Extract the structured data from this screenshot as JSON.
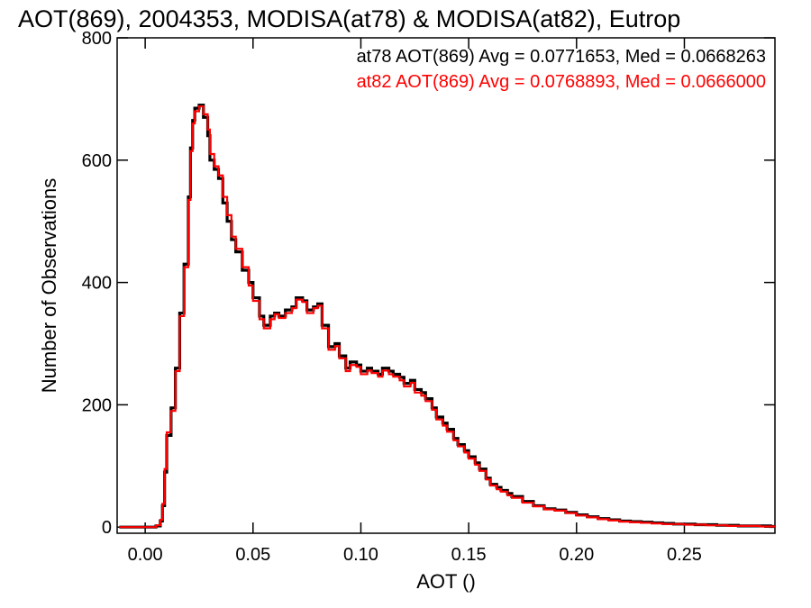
{
  "chart_data": {
    "type": "line",
    "title": "AOT(869), 2004353, MODISA(at78) & MODISA(at82), Eutrop",
    "xlabel": "AOT ()",
    "ylabel": "Number of Observations",
    "xlim": [
      -0.013,
      0.292
    ],
    "ylim": [
      -10,
      800
    ],
    "x_ticks": [
      0.0,
      0.05,
      0.1,
      0.15,
      0.2,
      0.25
    ],
    "x_tick_labels": [
      "0.00",
      "0.05",
      "0.10",
      "0.15",
      "0.20",
      "0.25"
    ],
    "y_ticks": [
      0,
      200,
      400,
      600,
      800
    ],
    "y_tick_labels": [
      "0",
      "200",
      "400",
      "600",
      "800"
    ],
    "grid": false,
    "histogram_step": true,
    "series": [
      {
        "name": "at78",
        "color": "#000000",
        "annotation": "at78 AOT(869) Avg = 0.0771653, Med = 0.0668263",
        "x": [
          -0.012,
          0.0,
          0.005,
          0.007,
          0.008,
          0.009,
          0.01,
          0.012,
          0.014,
          0.016,
          0.018,
          0.02,
          0.021,
          0.022,
          0.023,
          0.025,
          0.027,
          0.029,
          0.03,
          0.032,
          0.034,
          0.036,
          0.038,
          0.04,
          0.042,
          0.045,
          0.048,
          0.05,
          0.053,
          0.055,
          0.058,
          0.06,
          0.062,
          0.065,
          0.068,
          0.07,
          0.073,
          0.075,
          0.078,
          0.08,
          0.082,
          0.085,
          0.088,
          0.09,
          0.093,
          0.095,
          0.098,
          0.1,
          0.103,
          0.105,
          0.108,
          0.11,
          0.113,
          0.115,
          0.118,
          0.12,
          0.123,
          0.125,
          0.128,
          0.13,
          0.133,
          0.135,
          0.138,
          0.14,
          0.143,
          0.145,
          0.148,
          0.15,
          0.153,
          0.155,
          0.158,
          0.16,
          0.163,
          0.165,
          0.168,
          0.17,
          0.175,
          0.18,
          0.185,
          0.19,
          0.195,
          0.2,
          0.205,
          0.21,
          0.215,
          0.22,
          0.225,
          0.23,
          0.235,
          0.24,
          0.245,
          0.25,
          0.255,
          0.26,
          0.265,
          0.27,
          0.275,
          0.28,
          0.285,
          0.29
        ],
        "y": [
          0,
          0,
          2,
          10,
          35,
          90,
          150,
          195,
          260,
          350,
          430,
          540,
          620,
          665,
          685,
          690,
          670,
          640,
          600,
          585,
          570,
          530,
          500,
          470,
          450,
          420,
          400,
          375,
          345,
          330,
          345,
          350,
          345,
          355,
          360,
          375,
          370,
          355,
          360,
          365,
          330,
          295,
          300,
          280,
          260,
          270,
          265,
          255,
          260,
          255,
          250,
          260,
          255,
          250,
          245,
          235,
          240,
          225,
          220,
          210,
          195,
          180,
          170,
          160,
          145,
          135,
          125,
          115,
          105,
          95,
          80,
          70,
          65,
          60,
          55,
          50,
          42,
          35,
          30,
          28,
          24,
          20,
          17,
          14,
          12,
          10,
          9,
          8,
          7,
          6,
          5,
          5,
          4,
          4,
          3,
          3,
          2,
          2,
          2,
          1
        ]
      },
      {
        "name": "at82",
        "color": "#ff0000",
        "annotation": "at82 AOT(869) Avg = 0.0768893, Med = 0.0666000",
        "x": [
          -0.012,
          0.0,
          0.005,
          0.007,
          0.008,
          0.009,
          0.01,
          0.012,
          0.014,
          0.016,
          0.018,
          0.02,
          0.021,
          0.022,
          0.023,
          0.025,
          0.027,
          0.029,
          0.03,
          0.032,
          0.034,
          0.036,
          0.038,
          0.04,
          0.042,
          0.045,
          0.048,
          0.05,
          0.053,
          0.055,
          0.058,
          0.06,
          0.062,
          0.065,
          0.068,
          0.07,
          0.073,
          0.075,
          0.078,
          0.08,
          0.082,
          0.085,
          0.088,
          0.09,
          0.093,
          0.095,
          0.098,
          0.1,
          0.103,
          0.105,
          0.108,
          0.11,
          0.113,
          0.115,
          0.118,
          0.12,
          0.123,
          0.125,
          0.128,
          0.13,
          0.133,
          0.135,
          0.138,
          0.14,
          0.143,
          0.145,
          0.148,
          0.15,
          0.153,
          0.155,
          0.158,
          0.16,
          0.163,
          0.165,
          0.168,
          0.17,
          0.175,
          0.18,
          0.185,
          0.19,
          0.195,
          0.2,
          0.205,
          0.21,
          0.215,
          0.22,
          0.225,
          0.23,
          0.235,
          0.24,
          0.245,
          0.25,
          0.255,
          0.26,
          0.265,
          0.27,
          0.275,
          0.28,
          0.285,
          0.29
        ],
        "y": [
          0,
          0,
          3,
          12,
          38,
          95,
          155,
          190,
          255,
          345,
          425,
          535,
          615,
          660,
          680,
          688,
          675,
          650,
          610,
          590,
          575,
          540,
          510,
          475,
          455,
          425,
          395,
          370,
          340,
          325,
          340,
          348,
          342,
          350,
          358,
          372,
          368,
          350,
          358,
          362,
          325,
          290,
          296,
          276,
          255,
          265,
          262,
          250,
          256,
          252,
          246,
          256,
          250,
          246,
          240,
          230,
          236,
          220,
          215,
          206,
          192,
          176,
          166,
          156,
          142,
          132,
          122,
          112,
          102,
          92,
          78,
          68,
          62,
          58,
          52,
          48,
          40,
          34,
          29,
          27,
          23,
          19,
          16,
          13,
          11,
          9,
          8,
          7,
          6,
          5,
          5,
          4,
          4,
          3,
          3,
          2,
          2,
          2,
          1,
          1
        ]
      }
    ]
  }
}
